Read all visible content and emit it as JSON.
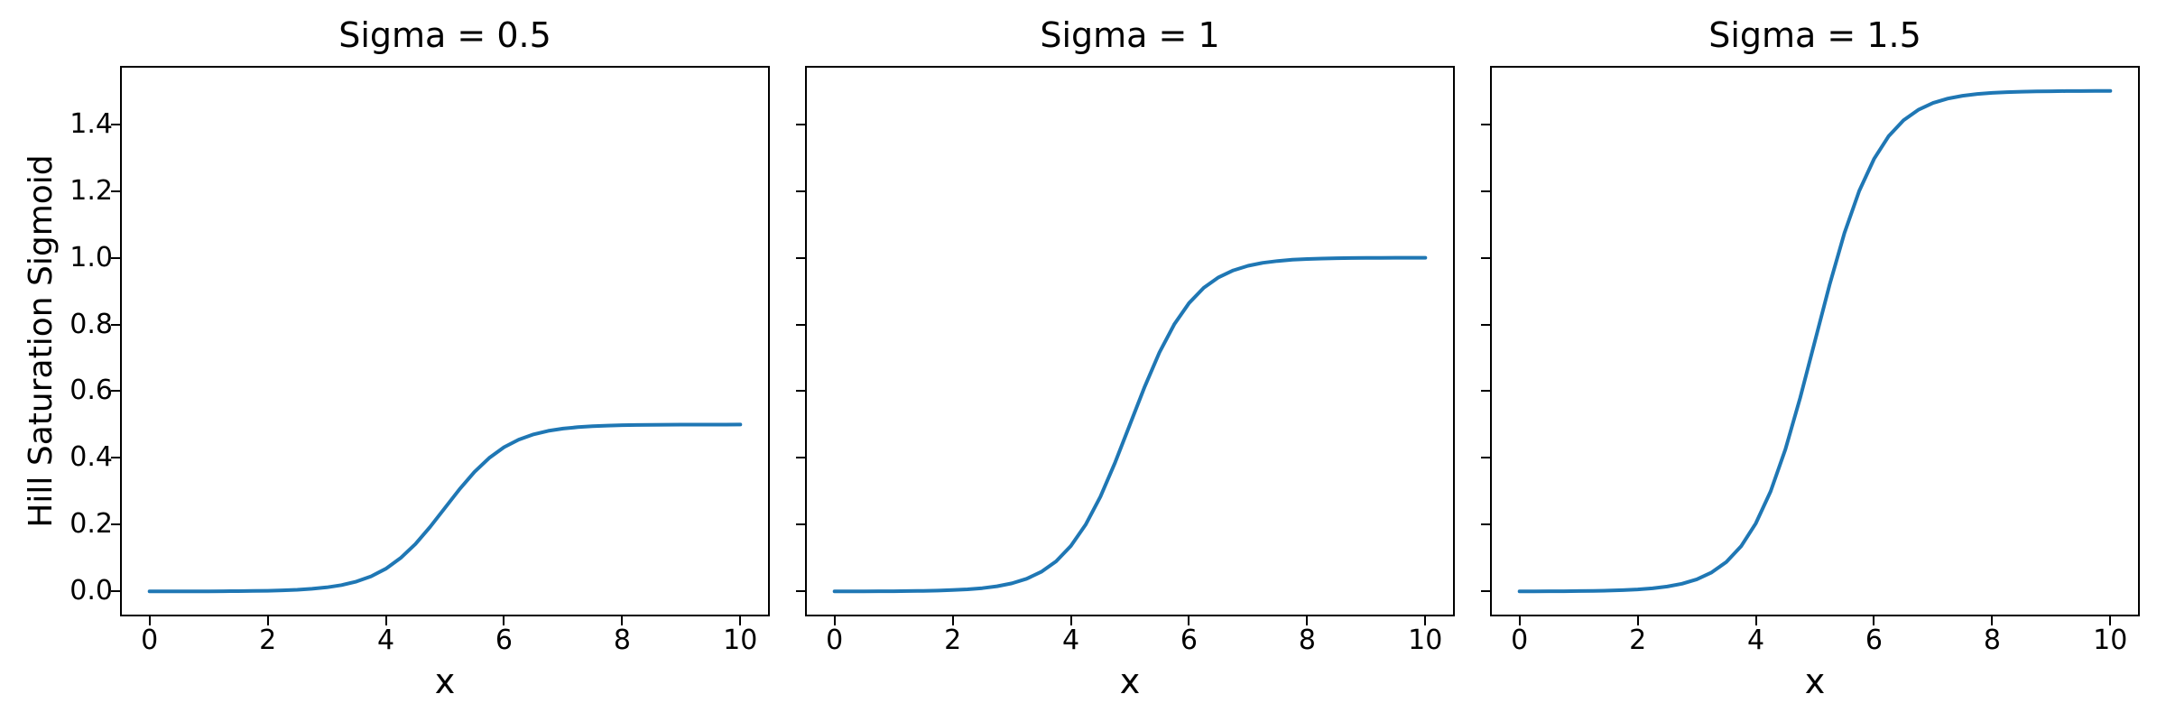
{
  "figure": {
    "background": "#ffffff"
  },
  "chart_data": {
    "type": "line",
    "xlabel": "x",
    "ylabel": "Hill Saturation Sigmoid",
    "xlim": [
      -0.5,
      10.5
    ],
    "ylim": [
      -0.075,
      1.575
    ],
    "xticks": [
      "0",
      "2",
      "4",
      "6",
      "8",
      "10"
    ],
    "xtick_values": [
      0,
      2,
      4,
      6,
      8,
      10
    ],
    "yticks": [
      "0.0",
      "0.2",
      "0.4",
      "0.6",
      "0.8",
      "1.0",
      "1.2",
      "1.4"
    ],
    "ytick_values": [
      0.0,
      0.2,
      0.4,
      0.6,
      0.8,
      1.0,
      1.2,
      1.4
    ],
    "grid": false,
    "legend": null,
    "line_color": "#1f77b4",
    "x": [
      0,
      0.25,
      0.5,
      0.75,
      1,
      1.25,
      1.5,
      1.75,
      2,
      2.25,
      2.5,
      2.75,
      3,
      3.25,
      3.5,
      3.75,
      4,
      4.25,
      4.5,
      4.75,
      5,
      5.25,
      5.5,
      5.75,
      6,
      6.25,
      6.5,
      6.75,
      7,
      7.25,
      7.5,
      7.75,
      8,
      8.25,
      8.5,
      8.75,
      9,
      9.25,
      9.5,
      9.75,
      10
    ],
    "series": [
      {
        "name": "Sigma = 0.5",
        "sigma": 0.5,
        "values": [
          0.0,
          0.0001,
          0.0001,
          0.0002,
          0.0003,
          0.0005,
          0.0008,
          0.0012,
          0.0019,
          0.0031,
          0.0049,
          0.0077,
          0.0121,
          0.0189,
          0.0293,
          0.045,
          0.0679,
          0.0999,
          0.142,
          0.1932,
          0.25,
          0.3068,
          0.358,
          0.4001,
          0.4321,
          0.455,
          0.4707,
          0.4811,
          0.4879,
          0.4923,
          0.4951,
          0.4969,
          0.4981,
          0.4988,
          0.4992,
          0.4995,
          0.4997,
          0.4998,
          0.4999,
          0.4999,
          0.5
        ]
      },
      {
        "name": "Sigma = 1",
        "sigma": 1,
        "values": [
          0.0001,
          0.0002,
          0.0002,
          0.0004,
          0.0006,
          0.001,
          0.0015,
          0.0024,
          0.0039,
          0.0061,
          0.0097,
          0.0153,
          0.0241,
          0.0378,
          0.0587,
          0.0901,
          0.1359,
          0.1998,
          0.2839,
          0.3864,
          0.5,
          0.6136,
          0.7161,
          0.8002,
          0.8641,
          0.9099,
          0.9413,
          0.9622,
          0.9759,
          0.9847,
          0.9903,
          0.9939,
          0.9961,
          0.9976,
          0.9985,
          0.999,
          0.9994,
          0.9996,
          0.9998,
          0.9998,
          0.9999
        ]
      },
      {
        "name": "Sigma = 1.5",
        "sigma": 1.5,
        "values": [
          0.0001,
          0.0002,
          0.0004,
          0.0006,
          0.0009,
          0.0015,
          0.0023,
          0.0037,
          0.0058,
          0.0092,
          0.0146,
          0.023,
          0.0362,
          0.0567,
          0.088,
          0.1351,
          0.2038,
          0.2997,
          0.4259,
          0.5796,
          0.75,
          0.9204,
          1.0741,
          1.2003,
          1.2962,
          1.3649,
          1.412,
          1.4433,
          1.4638,
          1.477,
          1.4854,
          1.4908,
          1.4942,
          1.4963,
          1.4977,
          1.4985,
          1.4991,
          1.4994,
          1.4996,
          1.4998,
          1.4999
        ]
      }
    ]
  }
}
